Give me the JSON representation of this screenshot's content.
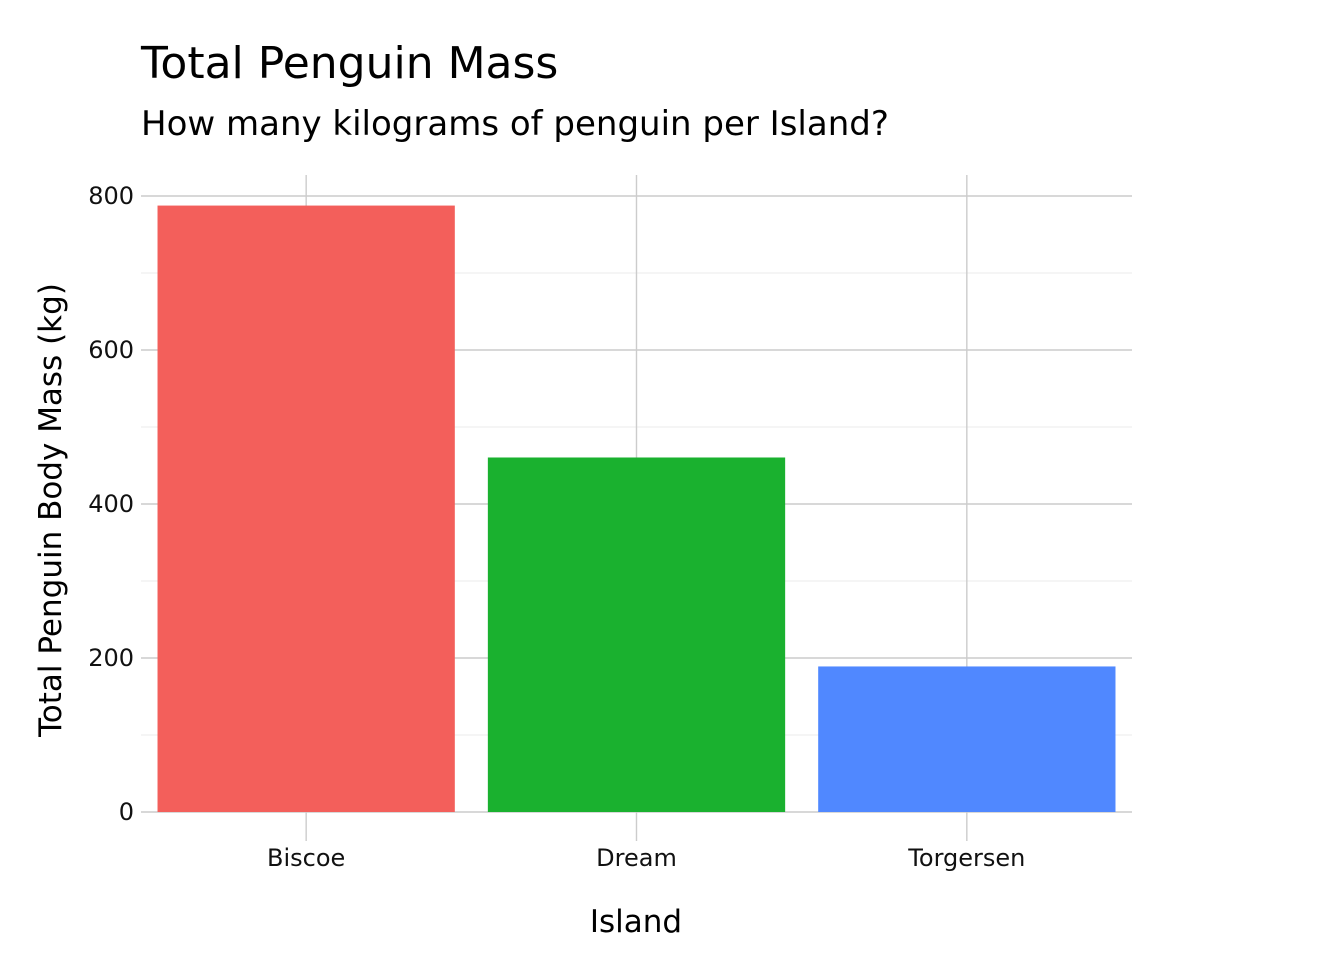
{
  "chart_data": {
    "type": "bar",
    "title": "Total Penguin Mass",
    "subtitle": "How many kilograms of penguin per Island?",
    "xlabel": "Island",
    "ylabel": "Total Penguin Body Mass (kg)",
    "categories": [
      "Biscoe",
      "Dream",
      "Torgersen"
    ],
    "values": [
      787.575,
      460.4,
      189.025
    ],
    "colors": [
      "#F35F5B",
      "#1AB12F",
      "#5088FF"
    ],
    "ylim": [
      0,
      825
    ],
    "yticks": [
      0,
      200,
      400,
      600,
      800
    ],
    "ytick_labels": [
      "0",
      "200",
      "400",
      "600",
      "800"
    ],
    "grid": true,
    "legend": "none"
  }
}
